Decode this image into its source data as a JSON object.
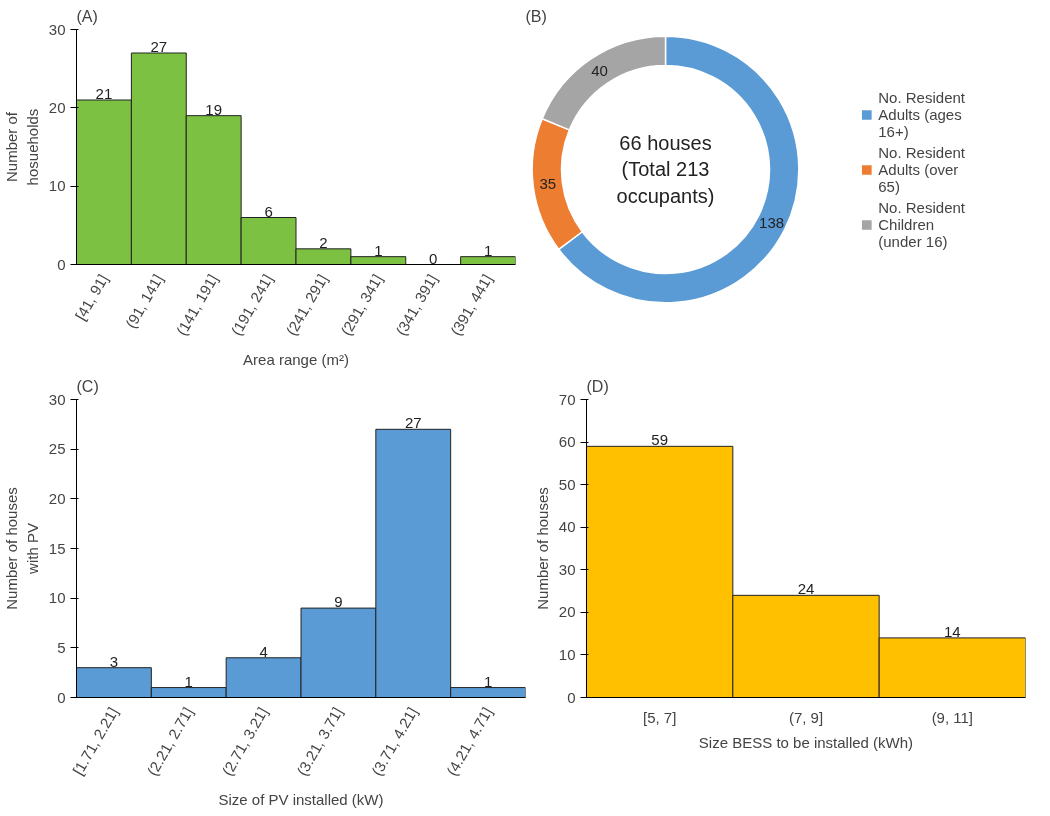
{
  "chart_data": [
    {
      "type": "bar",
      "title": "(A)",
      "categories": [
        "[41, 91]",
        "(91, 141]",
        "(141, 191]",
        "(191, 241]",
        "(241, 291]",
        "(291, 341]",
        "(341, 391]",
        "(391, 441]"
      ],
      "values": [
        21,
        27,
        19,
        6,
        2,
        1,
        0,
        1
      ],
      "color": "#7cc142",
      "ylim": [
        0,
        30
      ],
      "yticks": [
        0,
        10,
        20,
        30
      ],
      "data_labels": true,
      "xlabel": "Area range (m²)",
      "ylabel": "Number of hosueholds"
    },
    {
      "type": "donut",
      "title": "(B)",
      "categories": [
        "No. Resident Adults (ages 16+)",
        "No. Resident Adults (over 65)",
        "No. Resident Children (under 16)"
      ],
      "values": [
        138,
        35,
        40
      ],
      "colors": [
        "#5b9bd5",
        "#ed7d31",
        "#a5a5a5"
      ],
      "data_labels": true,
      "legend": "right",
      "annotations": [
        "66 houses (Total 213 occupants)"
      ]
    },
    {
      "type": "bar",
      "title": "(C)",
      "categories": [
        "[1.71, 2.21]",
        "(2.21, 2.71]",
        "(2.71, 3.21]",
        "(3.21, 3.71]",
        "(3.71, 4.21]",
        "(4.21, 4.71]"
      ],
      "values": [
        3,
        1,
        4,
        9,
        27,
        1
      ],
      "color": "#5b9bd5",
      "ylim": [
        0,
        30
      ],
      "yticks": [
        0,
        5,
        10,
        15,
        20,
        25,
        30
      ],
      "data_labels": true,
      "xlabel": "Size of PV installed (kW)",
      "ylabel": "Number of houses with PV"
    },
    {
      "type": "bar",
      "title": "(D)",
      "categories": [
        "[5, 7]",
        "(7, 9]",
        "(9, 11]"
      ],
      "values": [
        59,
        24,
        14
      ],
      "color": "#ffc000",
      "ylim": [
        0,
        70
      ],
      "yticks": [
        0,
        10,
        20,
        30,
        40,
        50,
        60,
        70
      ],
      "data_labels": true,
      "xlabel": "Size BESS to be installed (kWh)",
      "ylabel": "Number of houses"
    }
  ]
}
